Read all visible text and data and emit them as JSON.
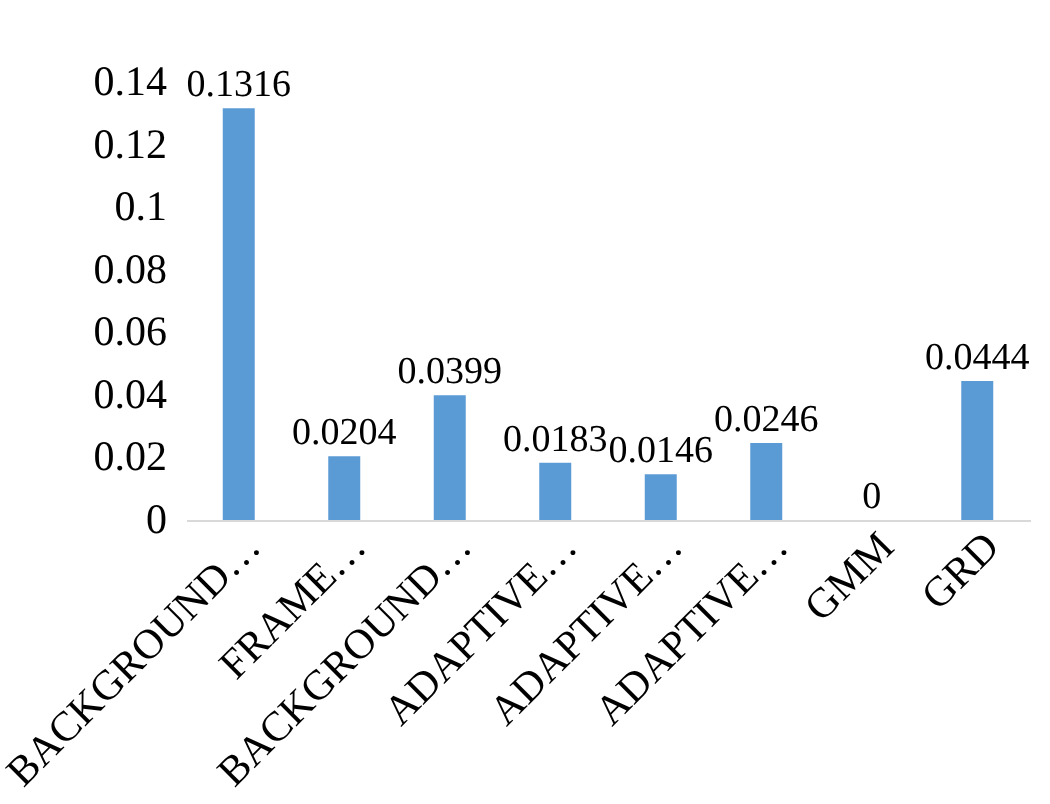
{
  "chart_data": {
    "type": "bar",
    "categories": [
      "BACKGROUND…",
      "FRAME…",
      "BACKGROUND…",
      "ADAPTIVE…",
      "ADAPTIVE…",
      "ADAPTIVE…",
      "GMM",
      "GRD"
    ],
    "values": [
      0.1316,
      0.0204,
      0.0399,
      0.0183,
      0.0146,
      0.0246,
      0,
      0.0444
    ],
    "color": "#5b9bd5",
    "ylim": [
      0,
      0.14
    ],
    "yticks": [
      0,
      0.02,
      0.04,
      0.06,
      0.08,
      0.1,
      0.12,
      0.14
    ],
    "data_labels": true,
    "grid": false
  }
}
